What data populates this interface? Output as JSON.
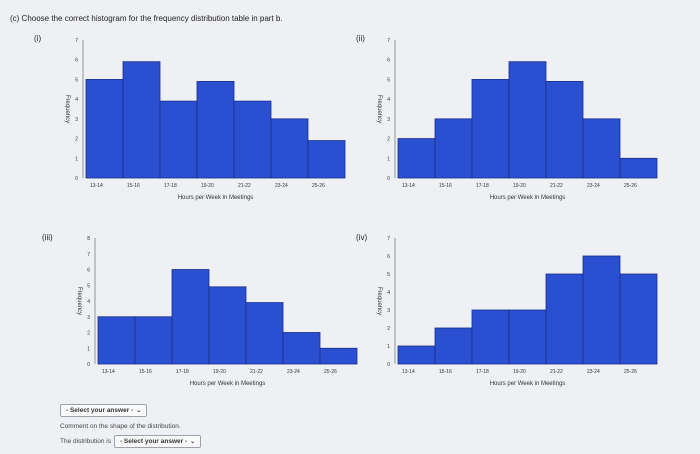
{
  "question": "(c) Choose the correct histogram for the frequency distribution table in part b.",
  "colors": {
    "bar": "#2b4fd1",
    "bar_border": "#1a2f8a",
    "background": "#eef0f3"
  },
  "options": [
    {
      "label": "(i)"
    },
    {
      "label": "(ii)"
    },
    {
      "label": "(iii)"
    },
    {
      "label": "(iv)"
    }
  ],
  "chart_data": [
    {
      "type": "bar",
      "categories": [
        "13-14",
        "15-16",
        "17-18",
        "19-20",
        "21-22",
        "23-24",
        "25-26"
      ],
      "values": [
        5,
        5.9,
        3.9,
        4.9,
        3.9,
        3,
        1.9
      ],
      "yticks": [
        "0",
        "1",
        "2",
        "3",
        "4",
        "5",
        "6",
        "7"
      ],
      "xticks": [
        "13-14",
        "15-16",
        "17-18",
        "19-20",
        "21-22",
        "23-24",
        "25-26"
      ],
      "xlabel": "Hours per Week in Meetings",
      "ylabel": "Frequency",
      "ylim": [
        0,
        7
      ]
    },
    {
      "type": "bar",
      "categories": [
        "13-14",
        "15-16",
        "17-18",
        "19-20",
        "21-22",
        "23-24",
        "25-26"
      ],
      "values": [
        2,
        3,
        5,
        5.9,
        4.9,
        3,
        1
      ],
      "yticks": [
        "0",
        "1",
        "2",
        "3",
        "4",
        "5",
        "6",
        "7"
      ],
      "xticks": [
        "13-14",
        "15-16",
        "17-18",
        "19-20",
        "21-22",
        "23-24",
        "25-26"
      ],
      "xlabel": "Hours per Week in Meetings",
      "ylabel": "Frequency",
      "ylim": [
        0,
        7
      ]
    },
    {
      "type": "bar",
      "categories": [
        "13-14",
        "15-16",
        "17-18",
        "19-20",
        "21-22",
        "23-24",
        "25-26"
      ],
      "values": [
        3,
        3,
        6,
        4.9,
        3.9,
        2,
        1
      ],
      "yticks": [
        "0",
        "1",
        "2",
        "3",
        "4",
        "5",
        "6",
        "7",
        "8"
      ],
      "xticks": [
        "13-14",
        "15-16",
        "17-18",
        "19-20",
        "21-22",
        "23-24",
        "25-26"
      ],
      "xlabel": "Hours per Week in Meetings",
      "ylabel": "Frequency",
      "ylim": [
        0,
        8
      ]
    },
    {
      "type": "bar",
      "categories": [
        "13-14",
        "15-16",
        "17-18",
        "19-20",
        "21-22",
        "23-24",
        "25-26"
      ],
      "values": [
        1,
        2,
        3,
        3,
        5,
        6,
        5
      ],
      "yticks": [
        "0",
        "1",
        "2",
        "3",
        "4",
        "5",
        "6",
        "7"
      ],
      "xticks": [
        "13-14",
        "15-16",
        "17-18",
        "19-20",
        "21-22",
        "23-24",
        "25-26"
      ],
      "xlabel": "Hours per Week in Meetings",
      "ylabel": "Frequency",
      "ylim": [
        0,
        7
      ]
    }
  ],
  "answer_select": {
    "label": "- Select your answer -"
  },
  "comment": "Comment on the shape of the distribution.",
  "distribution": {
    "prefix": "The distribution is",
    "select_label": "- Select your answer -"
  }
}
